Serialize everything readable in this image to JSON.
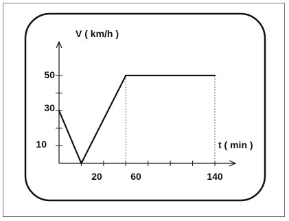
{
  "chart_data": {
    "type": "line",
    "ylabel": "V ( km/h )",
    "xlabel": "t ( min )",
    "x_ticks": [
      20,
      60,
      140
    ],
    "y_ticks": [
      10,
      30,
      50
    ],
    "xlim": [
      0,
      140
    ],
    "ylim": [
      0,
      50
    ],
    "grid": false,
    "series": [
      {
        "x": [
          0,
          20,
          60,
          140
        ],
        "values": [
          30,
          0,
          50,
          50
        ]
      }
    ]
  }
}
